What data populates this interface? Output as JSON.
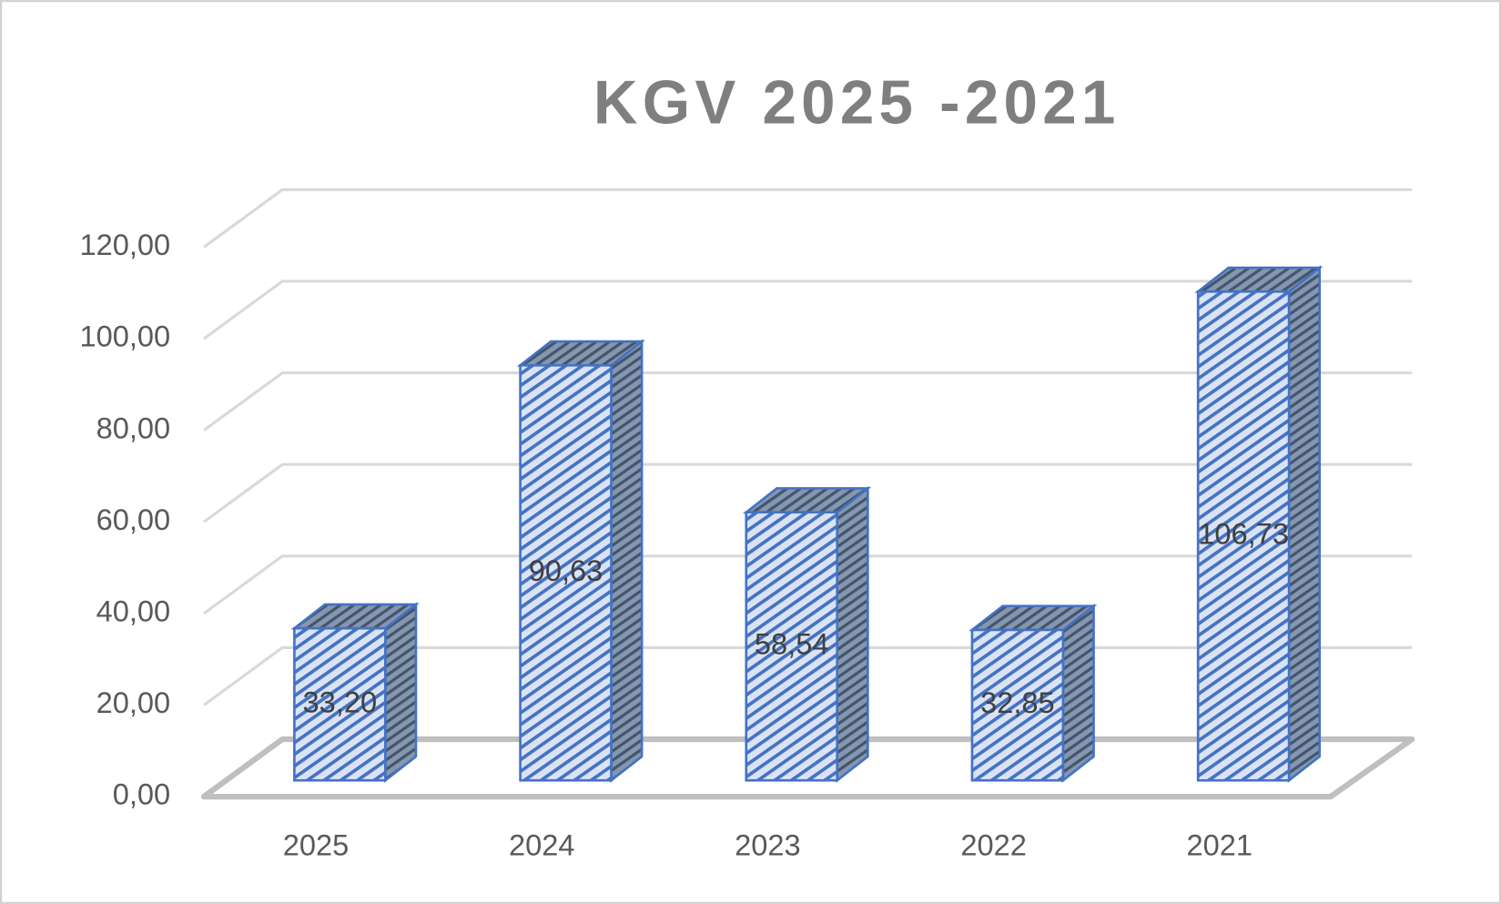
{
  "chart_data": {
    "type": "bar3d",
    "title": "KGV 2025 -2021",
    "categories": [
      "2025",
      "2024",
      "2023",
      "2022",
      "2021"
    ],
    "values": [
      33.2,
      90.63,
      58.54,
      32.85,
      106.73
    ],
    "value_labels": [
      "33,20",
      "90,63",
      "58,54",
      "32,85",
      "106,73"
    ],
    "color": "#4472c4",
    "ylim": [
      0,
      120
    ],
    "yticks": [
      {
        "value": 0,
        "label": "0,00"
      },
      {
        "value": 20,
        "label": "20,00"
      },
      {
        "value": 40,
        "label": "40,00"
      },
      {
        "value": 60,
        "label": "60,00"
      },
      {
        "value": 80,
        "label": "80,00"
      },
      {
        "value": 100,
        "label": "100,00"
      },
      {
        "value": 120,
        "label": "120,00"
      }
    ],
    "grid": true
  }
}
